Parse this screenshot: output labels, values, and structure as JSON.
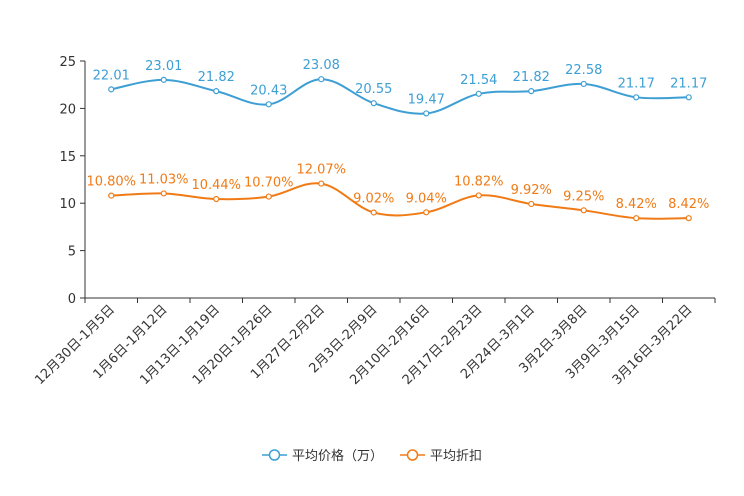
{
  "chart_data": {
    "type": "line",
    "title": "",
    "xlabel": "",
    "ylabel": "",
    "ylim": [
      0,
      25
    ],
    "yticks": [
      0,
      5,
      10,
      15,
      20,
      25
    ],
    "grid": false,
    "legend_position": "bottom-center",
    "categories": [
      "12月30日-1月5日",
      "1月6日-1月12日",
      "1月13日-1月19日",
      "1月20日-1月26日",
      "1月27日-2月2日",
      "2月3日-2月9日",
      "2月10日-2月16日",
      "2月17日-2月23日",
      "2月24日-3月1日",
      "3月2日-3月8日",
      "3月9日-3月15日",
      "3月16日-3月22日"
    ],
    "series": [
      {
        "name": "平均价格（万）",
        "color": "#3d9fd4",
        "values": [
          22.01,
          23.01,
          21.82,
          20.43,
          23.08,
          20.55,
          19.47,
          21.54,
          21.82,
          22.58,
          21.17,
          21.17
        ],
        "labels": [
          "22.01",
          "23.01",
          "21.82",
          "20.43",
          "23.08",
          "20.55",
          "19.47",
          "21.54",
          "21.82",
          "22.58",
          "21.17",
          "21.17"
        ]
      },
      {
        "name": "平均折扣",
        "color": "#f07b16",
        "values": [
          10.8,
          11.03,
          10.44,
          10.7,
          12.07,
          9.02,
          9.04,
          10.82,
          9.92,
          9.25,
          8.42,
          8.42
        ],
        "labels": [
          "10.80%",
          "11.03%",
          "10.44%",
          "10.70%",
          "12.07%",
          "9.02%",
          "9.04%",
          "10.82%",
          "9.92%",
          "9.25%",
          "8.42%",
          "8.42%"
        ]
      }
    ]
  }
}
